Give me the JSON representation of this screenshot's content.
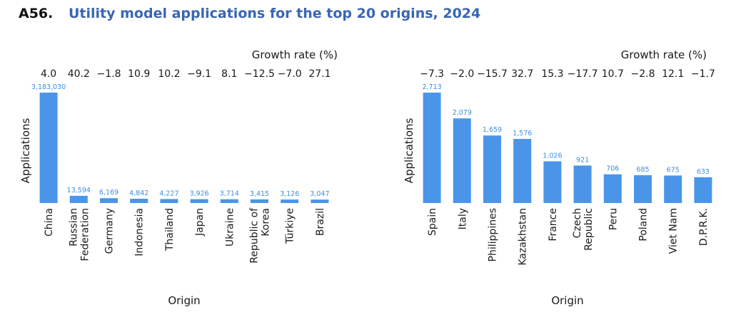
{
  "figure": {
    "number": "A56.",
    "title": "Utility model applications for the top 20 origins, 2024"
  },
  "colors": {
    "bar": "#4a95e8",
    "bar_label": "#3d8ee0",
    "title": "#3a66b0"
  },
  "chart_data": [
    {
      "type": "bar",
      "categories": [
        "China",
        "Russian Federation",
        "Germany",
        "Indonesia",
        "Thailand",
        "Japan",
        "Ukraine",
        "Republic of Korea",
        "Türkiye",
        "Brazil"
      ],
      "category_lines": [
        [
          "China"
        ],
        [
          "Russian",
          "Federation"
        ],
        [
          "Germany"
        ],
        [
          "Indonesia"
        ],
        [
          "Thailand"
        ],
        [
          "Japan"
        ],
        [
          "Ukraine"
        ],
        [
          "Republic of",
          "Korea"
        ],
        [
          "Türkiye"
        ],
        [
          "Brazil"
        ]
      ],
      "values": [
        3183030,
        13594,
        6169,
        4842,
        4227,
        3926,
        3714,
        3415,
        3126,
        3047
      ],
      "value_labels": [
        "3,183,030",
        "13,594",
        "6,169",
        "4,842",
        "4,227",
        "3,926",
        "3,714",
        "3,415",
        "3,126",
        "3,047"
      ],
      "growth_rates": [
        "4.0",
        "40.2",
        "−1.8",
        "10.9",
        "10.2",
        "−9.1",
        "8.1",
        "−12.5",
        "−7.0",
        "27.1"
      ],
      "growth_caption": "Growth rate (%)",
      "xlabel": "Origin",
      "ylabel": "Applications",
      "y_scale": "sqrt",
      "grid": false
    },
    {
      "type": "bar",
      "categories": [
        "Spain",
        "Italy",
        "Philippines",
        "Kazakhstan",
        "France",
        "Czech Republic",
        "Peru",
        "Poland",
        "Viet Nam",
        "D.P.R.K."
      ],
      "category_lines": [
        [
          "Spain"
        ],
        [
          "Italy"
        ],
        [
          "Philippines"
        ],
        [
          "Kazakhstan"
        ],
        [
          "France"
        ],
        [
          "Czech",
          "Republic"
        ],
        [
          "Peru"
        ],
        [
          "Poland"
        ],
        [
          "Viet Nam"
        ],
        [
          "D.P.R.K."
        ]
      ],
      "values": [
        2713,
        2079,
        1659,
        1576,
        1026,
        921,
        706,
        685,
        675,
        633
      ],
      "value_labels": [
        "2,713",
        "2,079",
        "1,659",
        "1,576",
        "1,026",
        "921",
        "706",
        "685",
        "675",
        "633"
      ],
      "growth_rates": [
        "−7.3",
        "−2.0",
        "−15.7",
        "32.7",
        "15.3",
        "−17.7",
        "10.7",
        "−2.8",
        "12.1",
        "−1.7"
      ],
      "growth_caption": "Growth rate (%)",
      "xlabel": "Origin",
      "ylabel": "Applications",
      "y_scale": "linear",
      "grid": false
    }
  ]
}
